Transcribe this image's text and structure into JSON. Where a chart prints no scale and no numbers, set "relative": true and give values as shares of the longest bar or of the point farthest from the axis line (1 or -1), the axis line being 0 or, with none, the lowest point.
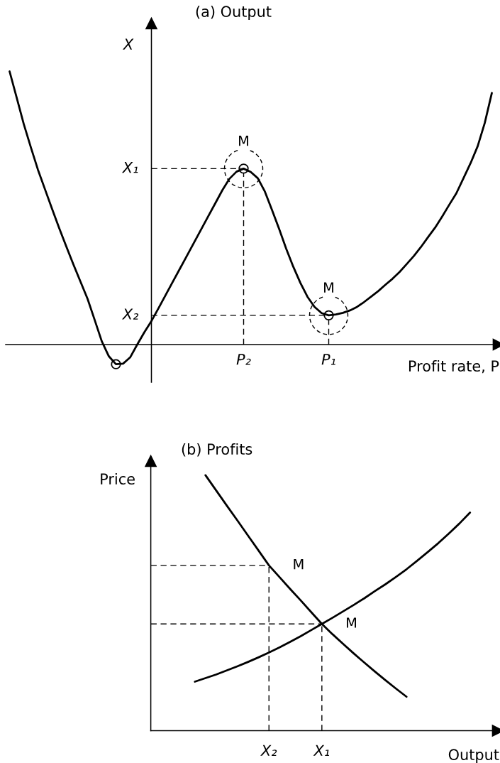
{
  "chart_data": [
    {
      "type": "line",
      "title": "(a) Output",
      "xlabel": "Profit rate, P",
      "ylabel": "X",
      "relative": true,
      "tick_labels": "x",
      "categories": [
        null,
        null,
        null,
        null,
        null,
        null,
        null,
        null,
        null,
        null,
        null,
        null,
        null,
        null,
        null,
        null,
        null,
        null,
        null,
        null,
        null,
        null,
        null,
        null,
        null,
        null,
        null,
        null,
        null,
        null,
        null,
        null,
        null,
        "P₂",
        null,
        null,
        null,
        null,
        null,
        null,
        null,
        null,
        null,
        null,
        null,
        "P₁",
        null,
        null,
        null,
        null,
        null,
        null,
        null,
        null,
        null,
        null,
        null,
        null,
        null,
        null,
        null,
        null,
        null,
        null,
        null,
        null,
        null,
        null,
        null
      ],
      "series": [
        {
          "color": "#000000",
          "values": [
            1.0,
            0.904,
            0.807,
            0.722,
            0.64,
            0.568,
            0.496,
            0.426,
            0.359,
            0.293,
            0.23,
            0.167,
            0.09,
            0.012,
            -0.043,
            -0.072,
            -0.07,
            -0.047,
            0.0,
            0.045,
            0.086,
            0.133,
            0.181,
            0.229,
            0.277,
            0.325,
            0.373,
            0.421,
            0.469,
            0.517,
            0.565,
            0.607,
            0.633,
            0.644,
            0.632,
            0.609,
            0.56,
            0.493,
            0.424,
            0.351,
            0.285,
            0.226,
            0.175,
            0.138,
            0.115,
            0.107,
            0.11,
            0.116,
            0.125,
            0.138,
            0.156,
            0.176,
            0.196,
            0.219,
            0.241,
            0.266,
            0.295,
            0.324,
            0.357,
            0.393,
            0.428,
            0.469,
            0.512,
            0.554,
            0.609,
            0.664,
            0.726,
            0.811,
            0.921
          ]
        },
        {
          "type": "lollipop",
          "marker": "circle",
          "line_style": "dashed",
          "color": "#000000",
          "values": [
            null,
            null,
            null,
            null,
            null,
            null,
            null,
            null,
            null,
            null,
            null,
            null,
            null,
            null,
            null,
            null,
            null,
            null,
            null,
            null,
            null,
            null,
            null,
            null,
            null,
            null,
            null,
            null,
            null,
            null,
            null,
            null,
            null,
            0.644,
            null,
            null,
            null,
            null,
            null,
            null,
            null,
            null,
            null,
            null,
            null,
            0.107,
            null,
            null,
            null,
            null,
            null,
            null,
            null,
            null,
            null,
            null,
            null,
            null,
            null,
            null,
            null,
            null,
            null,
            null,
            null,
            null,
            null,
            null,
            null
          ]
        },
        {
          "type": "scatter",
          "marker": "circle",
          "color": "#000000",
          "values": [
            null,
            null,
            null,
            null,
            null,
            null,
            null,
            null,
            null,
            null,
            null,
            null,
            null,
            null,
            null,
            -0.072,
            null,
            null,
            null,
            null,
            null,
            null,
            null,
            null,
            null,
            null,
            null,
            null,
            null,
            null,
            null,
            null,
            null,
            null,
            null,
            null,
            null,
            null,
            null,
            null,
            null,
            null,
            null,
            null,
            null,
            null,
            null,
            null,
            null,
            null,
            null,
            null,
            null,
            null,
            null,
            null,
            null,
            null,
            null,
            null,
            null,
            null,
            null,
            null,
            null,
            null,
            null,
            null,
            null
          ]
        }
      ],
      "ref_lines": [
        {
          "axis": "y",
          "value": 0.644,
          "label": "X₁",
          "line_style": "dashed",
          "color": "#000000"
        },
        {
          "axis": "y",
          "value": 0.107,
          "label": "X₂",
          "line_style": "dashed",
          "color": "#000000"
        }
      ],
      "annotations": [
        {
          "text": "M",
          "x": "P₂",
          "y": 0.644
        },
        {
          "text": "M",
          "x": "P₁",
          "y": 0.107
        }
      ]
    },
    {
      "type": "line",
      "title": "(b) Profits",
      "xlabel": "Output",
      "ylabel": "Price",
      "relative": true,
      "tick_labels": "x",
      "categories": [
        null,
        null,
        null,
        null,
        null,
        null,
        null,
        "X₂",
        null,
        null,
        null,
        null,
        "X₁",
        null,
        null,
        null,
        null,
        null,
        null,
        null,
        null,
        null,
        null,
        null,
        null,
        null,
        null
      ],
      "series": [
        {
          "color": "#000000",
          "values": [
            null,
            1.0,
            0.941,
            0.882,
            0.824,
            0.765,
            0.706,
            0.647,
            0.601,
            0.555,
            0.51,
            0.464,
            0.418,
            0.378,
            0.34,
            0.303,
            0.267,
            0.232,
            0.198,
            0.165,
            0.133,
            null,
            null,
            null,
            null,
            null,
            null
          ]
        },
        {
          "color": "#000000",
          "values": [
            0.192,
            0.206,
            0.22,
            0.236,
            0.252,
            0.269,
            0.287,
            0.306,
            0.326,
            0.348,
            0.37,
            0.394,
            0.418,
            0.442,
            0.467,
            0.492,
            0.518,
            0.546,
            0.573,
            0.602,
            0.632,
            0.665,
            0.699,
            0.734,
            0.772,
            0.811,
            0.854
          ]
        }
      ],
      "ref_lines": [
        {
          "axis": "y",
          "value": 0.647,
          "line_style": "dashed",
          "color": "#000000"
        },
        {
          "axis": "y",
          "value": 0.418,
          "line_style": "dashed",
          "color": "#000000"
        },
        {
          "axis": "x",
          "value": "X₂",
          "line_style": "dashed",
          "color": "#000000"
        },
        {
          "axis": "x",
          "value": "X₁",
          "line_style": "dashed",
          "color": "#000000"
        }
      ],
      "annotations": [
        {
          "text": "M",
          "x": "X₂",
          "y": 0.647
        },
        {
          "text": "M",
          "x": "X₁",
          "y": 0.418
        }
      ]
    }
  ]
}
